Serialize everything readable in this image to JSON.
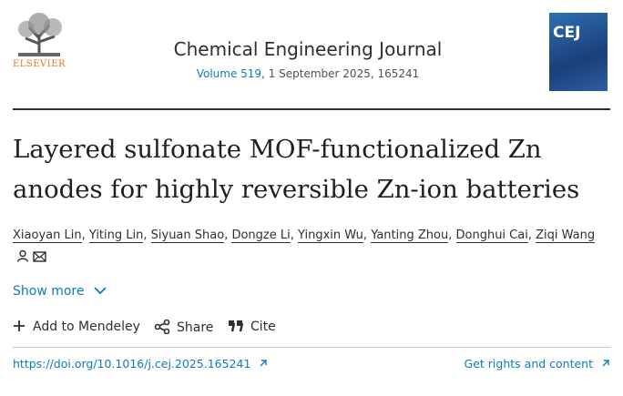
{
  "header": {
    "publisher": "ELSEVIER",
    "cover_title": "CEJ",
    "journal": "Chemical Engineering Journal",
    "volume_link": "Volume 519",
    "volume_rest": ", 1 September 2025, 165241"
  },
  "article": {
    "title": "Layered sulfonate MOF-functionalized Zn anodes for highly reversible Zn-ion batteries",
    "authors": [
      "Xiaoyan Lin",
      "Yiting Lin",
      "Siyuan Shao",
      "Dongze Li",
      "Yingxin Wu",
      "Yanting Zhou",
      "Donghui Cai",
      "Ziqi Wang"
    ],
    "author_separator": ",",
    "show_more": "Show more"
  },
  "actions": [
    "Add to Mendeley",
    "Share",
    "Cite"
  ],
  "footer": {
    "doi": "https://doi.org/10.1016/j.cej.2025.165241",
    "rights": "Get rights and content"
  }
}
